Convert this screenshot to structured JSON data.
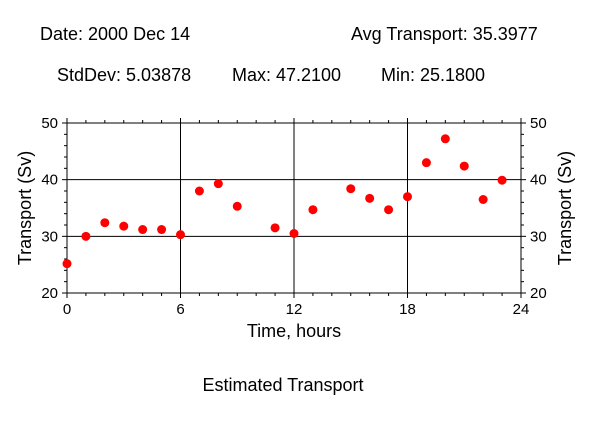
{
  "header": {
    "date": "Date: 2000 Dec 14",
    "avg": "Avg Transport: 35.3977",
    "stddev": "StdDev: 5.03878",
    "max": "Max: 47.2100",
    "min": "Min: 25.1800"
  },
  "footer": "Estimated Transport",
  "colors": {
    "points": "#ff0000",
    "axes": "#000000"
  },
  "chart_data": {
    "type": "scatter",
    "title": "Estimated Transport",
    "xlabel": "Time, hours",
    "ylabel": "Transport (Sv)",
    "xlim": [
      0,
      24
    ],
    "ylim": [
      20,
      50
    ],
    "xticks": [
      0,
      6,
      12,
      18,
      24
    ],
    "yticks": [
      20,
      30,
      40,
      50
    ],
    "grid": true,
    "series": [
      {
        "points": [
          [
            0,
            25.18
          ],
          [
            1,
            30.0
          ],
          [
            2,
            32.4
          ],
          [
            3,
            31.8
          ],
          [
            4,
            31.2
          ],
          [
            5,
            31.2
          ],
          [
            6,
            30.3
          ],
          [
            7,
            38.0
          ],
          [
            8,
            39.3
          ],
          [
            9,
            35.3
          ],
          [
            11,
            31.5
          ],
          [
            12,
            30.5
          ],
          [
            13,
            34.7
          ],
          [
            15,
            38.4
          ],
          [
            16,
            36.7
          ],
          [
            17,
            34.7
          ],
          [
            18,
            37.0
          ],
          [
            19,
            43.0
          ],
          [
            20,
            47.21
          ],
          [
            21,
            42.4
          ],
          [
            22,
            36.5
          ],
          [
            23,
            39.9
          ]
        ]
      }
    ]
  }
}
